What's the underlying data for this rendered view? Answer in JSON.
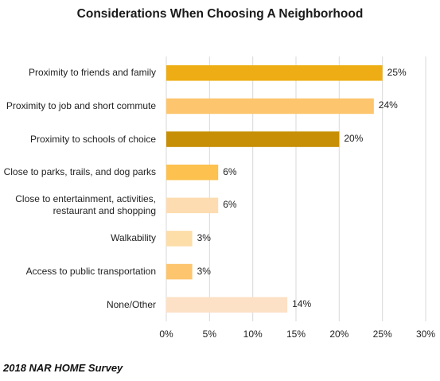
{
  "chart_data": {
    "type": "bar",
    "orientation": "horizontal",
    "title": "Considerations When Choosing A Neighborhood",
    "categories": [
      "Proximity to friends and family",
      "Proximity to job and short commute",
      "Proximity to schools of choice",
      "Close to parks, trails, and dog parks",
      "Close to entertainment, activities, restaurant and shopping",
      "Walkability",
      "Access to public transportation",
      "None/Other"
    ],
    "values": [
      25,
      24,
      20,
      6,
      6,
      3,
      3,
      14
    ],
    "data_labels": [
      "25%",
      "24%",
      "20%",
      "6%",
      "6%",
      "3%",
      "3%",
      "14%"
    ],
    "bar_colors": [
      "#EEAD14",
      "#FCC56E",
      "#C78F05",
      "#FCC14F",
      "#FCDCB0",
      "#FDDDA8",
      "#FCC56E",
      "#FCE1C6"
    ],
    "xlim": [
      0,
      30
    ],
    "x_ticks": [
      0,
      5,
      10,
      15,
      20,
      25,
      30
    ],
    "x_tick_labels": [
      "0%",
      "5%",
      "10%",
      "15%",
      "20%",
      "25%",
      "30%"
    ],
    "grid": "vertical",
    "legend": "none"
  },
  "source_note": "2018 NAR HOME Survey"
}
